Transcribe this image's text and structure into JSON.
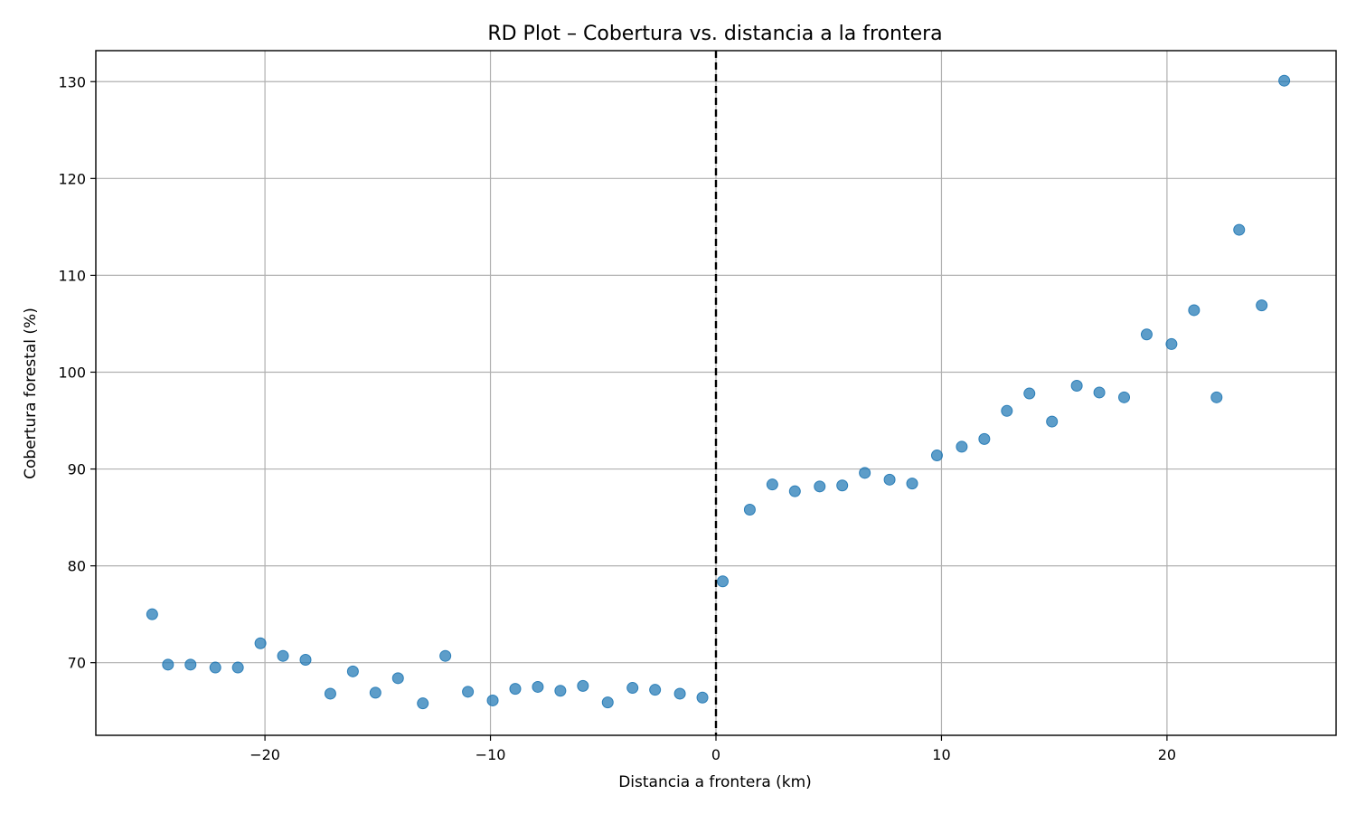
{
  "chart_data": {
    "type": "scatter",
    "title": "RD Plot – Cobertura vs. distancia a la frontera",
    "xlabel": "Distancia a frontera (km)",
    "ylabel": "Cobertura forestal (%)",
    "xlim": [
      -27.5,
      27.5
    ],
    "ylim": [
      62.5,
      133.2
    ],
    "xticks": [
      -20,
      -10,
      0,
      10,
      20
    ],
    "xtick_labels": [
      "−20",
      "−10",
      "0",
      "10",
      "20"
    ],
    "yticks": [
      70,
      80,
      90,
      100,
      110,
      120,
      130
    ],
    "ytick_labels": [
      "70",
      "80",
      "90",
      "100",
      "110",
      "120",
      "130"
    ],
    "grid": true,
    "cutoff_x": 0,
    "series": [
      {
        "color": "#1f77b4",
        "points": [
          [
            -25.0,
            75.0
          ],
          [
            -24.3,
            69.8
          ],
          [
            -23.3,
            69.8
          ],
          [
            -22.2,
            69.5
          ],
          [
            -21.2,
            69.5
          ],
          [
            -20.2,
            72.0
          ],
          [
            -19.2,
            70.7
          ],
          [
            -18.2,
            70.3
          ],
          [
            -17.1,
            66.8
          ],
          [
            -16.1,
            69.1
          ],
          [
            -15.1,
            66.9
          ],
          [
            -14.1,
            68.4
          ],
          [
            -13.0,
            65.8
          ],
          [
            -12.0,
            70.7
          ],
          [
            -11.0,
            67.0
          ],
          [
            -9.9,
            66.1
          ],
          [
            -8.9,
            67.3
          ],
          [
            -7.9,
            67.5
          ],
          [
            -6.9,
            67.1
          ],
          [
            -5.9,
            67.6
          ],
          [
            -4.8,
            65.9
          ],
          [
            -3.7,
            67.4
          ],
          [
            -2.7,
            67.2
          ],
          [
            -1.6,
            66.8
          ],
          [
            -0.6,
            66.4
          ],
          [
            0.3,
            78.4
          ],
          [
            1.5,
            85.8
          ],
          [
            2.5,
            88.4
          ],
          [
            3.5,
            87.7
          ],
          [
            4.6,
            88.2
          ],
          [
            5.6,
            88.3
          ],
          [
            6.6,
            89.6
          ],
          [
            7.7,
            88.9
          ],
          [
            8.7,
            88.5
          ],
          [
            9.8,
            91.4
          ],
          [
            10.9,
            92.3
          ],
          [
            11.9,
            93.1
          ],
          [
            12.9,
            96.0
          ],
          [
            13.9,
            97.8
          ],
          [
            14.9,
            94.9
          ],
          [
            16.0,
            98.6
          ],
          [
            17.0,
            97.9
          ],
          [
            18.1,
            97.4
          ],
          [
            19.1,
            103.9
          ],
          [
            20.2,
            102.9
          ],
          [
            21.2,
            106.4
          ],
          [
            22.2,
            97.4
          ],
          [
            23.2,
            114.7
          ],
          [
            24.2,
            106.9
          ],
          [
            25.2,
            130.1
          ]
        ]
      }
    ]
  }
}
